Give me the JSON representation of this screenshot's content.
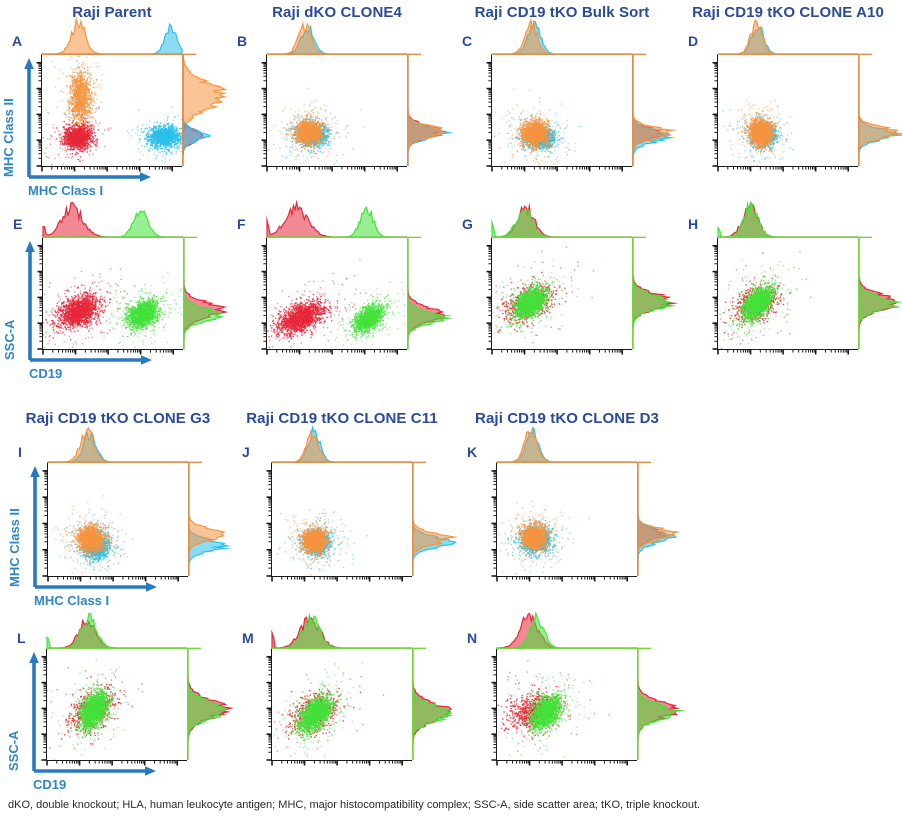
{
  "figure": {
    "footer": "dKO, double knockout; HLA, human leukocyte antigen; MHC, major histocompatibility complex; SSC-A, side scatter area; tKO, triple knockout.",
    "colors": {
      "title": "#2a4a9b",
      "axis_label": "#2e86c4",
      "arrow": "#2879be",
      "orange": "#f79440",
      "red": "#e6283a",
      "cyan": "#2cc0ea",
      "green": "#43e23b",
      "mhc_border": "#dd8f4e",
      "cd19_border": "#74d83d",
      "axis_black": "#1a1a1a"
    }
  },
  "chart_data": {
    "type": "scatter",
    "tick_style": "log",
    "panels": [
      {
        "letter": "A",
        "title": "Raji Parent",
        "family": "mhc",
        "grid": {
          "row": 0,
          "col": 0
        },
        "axes": {
          "x": "MHC Class I",
          "y": "MHC Class II"
        },
        "clusters": [
          {
            "color": "cyan",
            "x": 0.87,
            "y": 0.27,
            "sx": 0.055,
            "sy": 0.045,
            "n": 1300
          },
          {
            "color": "orange",
            "x": 0.27,
            "y": 0.62,
            "sx": 0.037,
            "sy": 0.115,
            "n": 1000
          },
          {
            "color": "red",
            "x": 0.25,
            "y": 0.26,
            "sx": 0.048,
            "sy": 0.05,
            "n": 1300
          }
        ],
        "top_hist": [
          {
            "color": "orange",
            "mu": 0.26,
            "sd": 0.05,
            "amp": 0.95
          },
          {
            "color": "cyan",
            "mu": 0.92,
            "sd": 0.04,
            "amp": 0.92
          }
        ],
        "right_hist": [
          {
            "color": "orange",
            "mu": 0.63,
            "sd": 0.115,
            "amp": 1.0
          },
          {
            "color": "red",
            "mu": 0.27,
            "sd": 0.05,
            "amp": 0.5
          },
          {
            "color": "cyan",
            "mu": 0.275,
            "sd": 0.048,
            "amp": 0.58
          }
        ]
      },
      {
        "letter": "B",
        "title": "Raji dKO CLONE4",
        "family": "mhc",
        "grid": {
          "row": 0,
          "col": 1
        },
        "clusters": [
          {
            "color": "cyan",
            "x": 0.315,
            "y": 0.29,
            "sx": 0.05,
            "sy": 0.05,
            "n": 1200
          },
          {
            "color": "orange",
            "x": 0.29,
            "y": 0.31,
            "sx": 0.045,
            "sy": 0.05,
            "n": 1400
          }
        ],
        "top_hist": [
          {
            "color": "cyan",
            "mu": 0.29,
            "sd": 0.045,
            "amp": 0.85
          },
          {
            "color": "orange",
            "mu": 0.27,
            "sd": 0.045,
            "amp": 0.9
          }
        ],
        "right_hist": [
          {
            "color": "red",
            "mu": 0.31,
            "sd": 0.055,
            "amp": 0.8
          },
          {
            "color": "cyan",
            "mu": 0.3,
            "sd": 0.05,
            "amp": 0.85
          },
          {
            "color": "orange",
            "mu": 0.31,
            "sd": 0.05,
            "amp": 0.9
          }
        ]
      },
      {
        "letter": "C",
        "title": "Raji CD19 tKO Bulk Sort",
        "family": "mhc",
        "grid": {
          "row": 0,
          "col": 2
        },
        "clusters": [
          {
            "color": "cyan",
            "x": 0.34,
            "y": 0.26,
            "sx": 0.05,
            "sy": 0.045,
            "n": 1100
          },
          {
            "color": "orange",
            "x": 0.3,
            "y": 0.3,
            "sx": 0.045,
            "sy": 0.055,
            "n": 1400
          }
        ],
        "top_hist": [
          {
            "color": "cyan",
            "mu": 0.3,
            "sd": 0.045,
            "amp": 0.9
          },
          {
            "color": "orange",
            "mu": 0.28,
            "sd": 0.045,
            "amp": 0.9
          }
        ],
        "right_hist": [
          {
            "color": "red",
            "mu": 0.29,
            "sd": 0.05,
            "amp": 0.7
          },
          {
            "color": "cyan",
            "mu": 0.27,
            "sd": 0.055,
            "amp": 0.85
          },
          {
            "color": "orange",
            "mu": 0.3,
            "sd": 0.05,
            "amp": 0.9
          }
        ]
      },
      {
        "letter": "D",
        "title": "Raji CD19 tKO CLONE A10",
        "family": "mhc",
        "grid": {
          "row": 0,
          "col": 3
        },
        "clusters": [
          {
            "color": "cyan",
            "x": 0.315,
            "y": 0.285,
            "sx": 0.045,
            "sy": 0.05,
            "n": 1200
          },
          {
            "color": "orange",
            "x": 0.3,
            "y": 0.31,
            "sx": 0.04,
            "sy": 0.055,
            "n": 1500
          }
        ],
        "top_hist": [
          {
            "color": "cyan",
            "mu": 0.285,
            "sd": 0.042,
            "amp": 0.92
          },
          {
            "color": "orange",
            "mu": 0.275,
            "sd": 0.042,
            "amp": 0.92
          }
        ],
        "right_hist": [
          {
            "color": "cyan",
            "mu": 0.285,
            "sd": 0.05,
            "amp": 0.88
          },
          {
            "color": "orange",
            "mu": 0.3,
            "sd": 0.05,
            "amp": 0.92
          }
        ]
      },
      {
        "letter": "E",
        "title": null,
        "family": "cd19",
        "grid": {
          "row": 1,
          "col": 0
        },
        "axes": {
          "x": "CD19",
          "y": "SSC-A"
        },
        "clusters": [
          {
            "color": "red",
            "x": 0.25,
            "y": 0.34,
            "sx": 0.07,
            "sy": 0.07,
            "n": 1600,
            "rho": 0.35
          },
          {
            "color": "green",
            "x": 0.71,
            "y": 0.32,
            "sx": 0.055,
            "sy": 0.06,
            "n": 1500,
            "rho": 0.3
          }
        ],
        "top_hist": [
          {
            "color": "red",
            "peaks": [
              {
                "mu": 0.21,
                "sd": 0.075,
                "amp": 0.88
              },
              {
                "mu": 0.004,
                "sd": 0.008,
                "amp": 0.45
              }
            ]
          },
          {
            "color": "green",
            "mu": 0.7,
            "sd": 0.05,
            "amp": 0.9
          }
        ],
        "right_hist": [
          {
            "color": "red",
            "mu": 0.35,
            "sd": 0.07,
            "amp": 0.9
          },
          {
            "color": "green",
            "mu": 0.31,
            "sd": 0.06,
            "amp": 0.85
          }
        ]
      },
      {
        "letter": "F",
        "title": null,
        "family": "cd19",
        "grid": {
          "row": 1,
          "col": 1
        },
        "clusters": [
          {
            "color": "red",
            "x": 0.24,
            "y": 0.29,
            "sx": 0.08,
            "sy": 0.07,
            "n": 1600,
            "rho": 0.5
          },
          {
            "color": "green",
            "x": 0.72,
            "y": 0.28,
            "sx": 0.05,
            "sy": 0.055,
            "n": 1400,
            "rho": 0.5
          }
        ],
        "top_hist": [
          {
            "color": "red",
            "peaks": [
              {
                "mu": 0.21,
                "sd": 0.08,
                "amp": 0.9
              },
              {
                "mu": 0.004,
                "sd": 0.008,
                "amp": 0.5
              }
            ]
          },
          {
            "color": "green",
            "mu": 0.71,
            "sd": 0.045,
            "amp": 0.9
          }
        ],
        "right_hist": [
          {
            "color": "red",
            "mu": 0.31,
            "sd": 0.065,
            "amp": 0.88
          },
          {
            "color": "green",
            "mu": 0.28,
            "sd": 0.055,
            "amp": 0.85
          }
        ]
      },
      {
        "letter": "G",
        "title": null,
        "family": "cd19",
        "grid": {
          "row": 1,
          "col": 2
        },
        "clusters": [
          {
            "color": "red",
            "x": 0.26,
            "y": 0.42,
            "sx": 0.085,
            "sy": 0.08,
            "n": 700,
            "rho": 0.4
          },
          {
            "color": "green",
            "x": 0.27,
            "y": 0.42,
            "sx": 0.055,
            "sy": 0.065,
            "n": 1600,
            "rho": 0.45
          }
        ],
        "top_hist": [
          {
            "color": "red",
            "mu": 0.24,
            "sd": 0.06,
            "amp": 0.88
          },
          {
            "color": "green",
            "peaks": [
              {
                "mu": 0.23,
                "sd": 0.055,
                "amp": 0.92
              },
              {
                "mu": 0.004,
                "sd": 0.008,
                "amp": 0.5
              }
            ]
          }
        ],
        "right_hist": [
          {
            "color": "red",
            "mu": 0.43,
            "sd": 0.07,
            "amp": 0.88
          },
          {
            "color": "green",
            "mu": 0.42,
            "sd": 0.065,
            "amp": 0.9
          }
        ]
      },
      {
        "letter": "H",
        "title": null,
        "family": "cd19",
        "grid": {
          "row": 1,
          "col": 3
        },
        "clusters": [
          {
            "color": "red",
            "x": 0.27,
            "y": 0.41,
            "sx": 0.08,
            "sy": 0.08,
            "n": 650,
            "rho": 0.4
          },
          {
            "color": "green",
            "x": 0.28,
            "y": 0.42,
            "sx": 0.05,
            "sy": 0.07,
            "n": 1600,
            "rho": 0.5
          }
        ],
        "top_hist": [
          {
            "color": "red",
            "mu": 0.23,
            "sd": 0.055,
            "amp": 0.9
          },
          {
            "color": "green",
            "peaks": [
              {
                "mu": 0.235,
                "sd": 0.05,
                "amp": 0.95
              },
              {
                "mu": 0.004,
                "sd": 0.008,
                "amp": 0.4
              }
            ]
          }
        ],
        "right_hist": [
          {
            "color": "red",
            "mu": 0.42,
            "sd": 0.07,
            "amp": 0.9
          },
          {
            "color": "green",
            "mu": 0.41,
            "sd": 0.06,
            "amp": 0.92
          }
        ]
      },
      {
        "letter": "I",
        "title": "Raji CD19 tKO CLONE G3",
        "family": "mhc",
        "grid": {
          "row": 2,
          "col": 0
        },
        "axes": {
          "x": "MHC Class I",
          "y": "MHC Class II"
        },
        "clusters": [
          {
            "color": "cyan",
            "x": 0.335,
            "y": 0.27,
            "sx": 0.045,
            "sy": 0.055,
            "n": 1300
          },
          {
            "color": "orange",
            "x": 0.3,
            "y": 0.335,
            "sx": 0.045,
            "sy": 0.055,
            "n": 1500
          }
        ],
        "top_hist": [
          {
            "color": "cyan",
            "mu": 0.3,
            "sd": 0.045,
            "amp": 0.9
          },
          {
            "color": "orange",
            "mu": 0.28,
            "sd": 0.05,
            "amp": 0.9
          }
        ],
        "right_hist": [
          {
            "color": "cyan",
            "mu": 0.27,
            "sd": 0.05,
            "amp": 0.85
          },
          {
            "color": "orange",
            "mu": 0.37,
            "sd": 0.05,
            "amp": 0.9
          }
        ]
      },
      {
        "letter": "J",
        "title": "Raji CD19 tKO CLONE C11",
        "family": "mhc",
        "grid": {
          "row": 2,
          "col": 1
        },
        "clusters": [
          {
            "color": "cyan",
            "x": 0.315,
            "y": 0.3,
            "sx": 0.045,
            "sy": 0.05,
            "n": 1200
          },
          {
            "color": "orange",
            "x": 0.3,
            "y": 0.32,
            "sx": 0.042,
            "sy": 0.05,
            "n": 1400
          }
        ],
        "top_hist": [
          {
            "color": "cyan",
            "mu": 0.3,
            "sd": 0.042,
            "amp": 0.92
          },
          {
            "color": "orange",
            "mu": 0.29,
            "sd": 0.042,
            "amp": 0.9
          }
        ],
        "right_hist": [
          {
            "color": "cyan",
            "mu": 0.3,
            "sd": 0.05,
            "amp": 0.88
          },
          {
            "color": "orange",
            "mu": 0.33,
            "sd": 0.05,
            "amp": 0.9
          }
        ]
      },
      {
        "letter": "K",
        "title": "Raji CD19 tKO CLONE D3",
        "family": "mhc",
        "grid": {
          "row": 2,
          "col": 2
        },
        "clusters": [
          {
            "color": "cyan",
            "x": 0.275,
            "y": 0.32,
            "sx": 0.05,
            "sy": 0.055,
            "n": 1200
          },
          {
            "color": "orange",
            "x": 0.26,
            "y": 0.35,
            "sx": 0.042,
            "sy": 0.05,
            "n": 1500
          }
        ],
        "top_hist": [
          {
            "color": "cyan",
            "mu": 0.25,
            "sd": 0.045,
            "amp": 0.9
          },
          {
            "color": "orange",
            "mu": 0.24,
            "sd": 0.045,
            "amp": 0.92
          }
        ],
        "right_hist": [
          {
            "color": "red",
            "mu": 0.37,
            "sd": 0.05,
            "amp": 0.6
          },
          {
            "color": "cyan",
            "mu": 0.35,
            "sd": 0.055,
            "amp": 0.85
          },
          {
            "color": "orange",
            "mu": 0.37,
            "sd": 0.048,
            "amp": 0.92
          }
        ]
      },
      {
        "letter": "L",
        "title": null,
        "family": "cd19",
        "grid": {
          "row": 3,
          "col": 0
        },
        "axes": {
          "x": "CD19",
          "y": "SSC-A"
        },
        "clusters": [
          {
            "color": "red",
            "x": 0.32,
            "y": 0.45,
            "sx": 0.075,
            "sy": 0.09,
            "n": 650,
            "rho": 0.35
          },
          {
            "color": "green",
            "x": 0.33,
            "y": 0.46,
            "sx": 0.05,
            "sy": 0.08,
            "n": 1600,
            "rho": 0.4
          }
        ],
        "top_hist": [
          {
            "color": "red",
            "mu": 0.29,
            "sd": 0.06,
            "amp": 0.85
          },
          {
            "color": "green",
            "peaks": [
              {
                "mu": 0.3,
                "sd": 0.055,
                "amp": 0.95
              },
              {
                "mu": 0.004,
                "sd": 0.008,
                "amp": 0.4
              }
            ]
          }
        ],
        "right_hist": [
          {
            "color": "red",
            "mu": 0.46,
            "sd": 0.085,
            "amp": 0.88
          },
          {
            "color": "green",
            "mu": 0.45,
            "sd": 0.075,
            "amp": 0.92
          }
        ]
      },
      {
        "letter": "M",
        "title": null,
        "family": "cd19",
        "grid": {
          "row": 3,
          "col": 1
        },
        "clusters": [
          {
            "color": "red",
            "x": 0.3,
            "y": 0.43,
            "sx": 0.08,
            "sy": 0.085,
            "n": 650,
            "rho": 0.4
          },
          {
            "color": "green",
            "x": 0.3,
            "y": 0.42,
            "sx": 0.055,
            "sy": 0.075,
            "n": 1600,
            "rho": 0.45
          }
        ],
        "top_hist": [
          {
            "color": "red",
            "peaks": [
              {
                "mu": 0.27,
                "sd": 0.07,
                "amp": 0.88
              },
              {
                "mu": 0.004,
                "sd": 0.008,
                "amp": 0.45
              }
            ]
          },
          {
            "color": "green",
            "mu": 0.28,
            "sd": 0.06,
            "amp": 0.9
          }
        ],
        "right_hist": [
          {
            "color": "red",
            "mu": 0.43,
            "sd": 0.08,
            "amp": 0.9
          },
          {
            "color": "green",
            "mu": 0.42,
            "sd": 0.07,
            "amp": 0.92
          }
        ]
      },
      {
        "letter": "N",
        "title": null,
        "family": "cd19",
        "grid": {
          "row": 3,
          "col": 2
        },
        "clusters": [
          {
            "color": "red",
            "x": 0.26,
            "y": 0.44,
            "sx": 0.09,
            "sy": 0.08,
            "n": 800,
            "rho": 0.3
          },
          {
            "color": "green",
            "x": 0.345,
            "y": 0.43,
            "sx": 0.05,
            "sy": 0.07,
            "n": 1600,
            "rho": 0.4
          }
        ],
        "top_hist": [
          {
            "color": "red",
            "mu": 0.23,
            "sd": 0.065,
            "amp": 0.95
          },
          {
            "color": "green",
            "mu": 0.285,
            "sd": 0.05,
            "amp": 0.92
          }
        ],
        "right_hist": [
          {
            "color": "red",
            "mu": 0.45,
            "sd": 0.075,
            "amp": 0.9
          },
          {
            "color": "green",
            "mu": 0.43,
            "sd": 0.065,
            "amp": 0.92
          }
        ]
      }
    ]
  }
}
